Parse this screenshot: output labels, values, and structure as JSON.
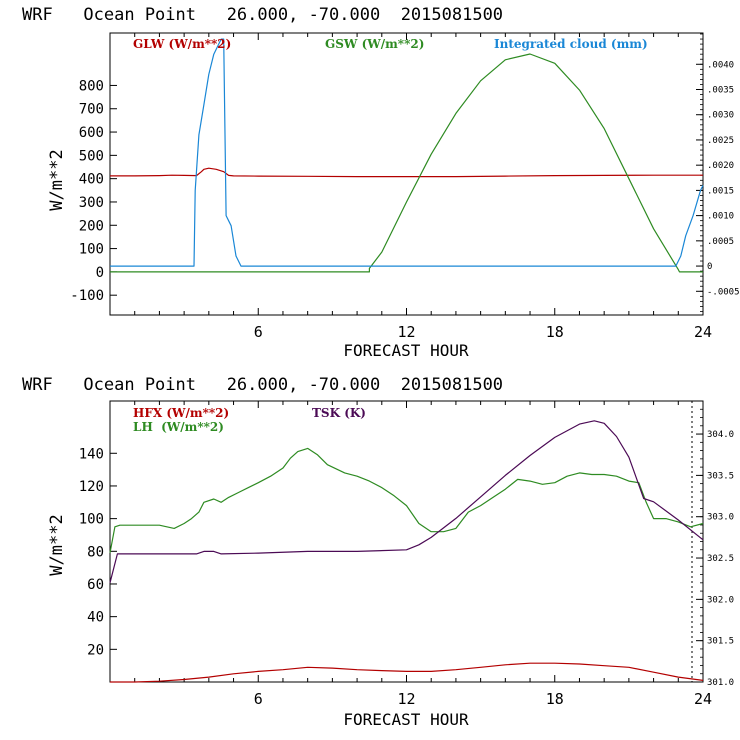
{
  "colors": {
    "glw": "#b30000",
    "gsw": "#2e8b22",
    "cloud": "#1a87d6",
    "hfx": "#b30000",
    "lh": "#2e8b22",
    "tsk": "#4b0a55",
    "axis": "#000000"
  },
  "chart_data": [
    {
      "type": "line",
      "title": "WRF   Ocean Point   26.000, -70.000  2015081500",
      "xlabel": "FORECAST HOUR",
      "ylabel": "W/m**2",
      "xlim": [
        0,
        24
      ],
      "ylim": [
        -185,
        1025
      ],
      "y2lim": [
        -0.00097,
        0.00462
      ],
      "x_ticks": [
        "6",
        "12",
        "18",
        "24"
      ],
      "y_ticks": [
        "800",
        "700",
        "600",
        "500",
        "400",
        "300",
        "200",
        "100",
        "0",
        "-100"
      ],
      "y2_ticks": [
        ".0040",
        ".0035",
        ".0030",
        ".0025",
        ".0020",
        ".0015",
        ".0010",
        ".0005",
        "0",
        "-.0005"
      ],
      "legend": [
        "GLW (W/m**2)",
        "GSW (W/m**2)",
        "Integrated cloud (mm)"
      ],
      "series": [
        {
          "name": "GLW (W/m**2)",
          "color_key": "glw",
          "axis": "left",
          "x": [
            0,
            1,
            2,
            2.5,
            3,
            3.5,
            3.7,
            3.8,
            4.0,
            4.3,
            4.6,
            4.8,
            5,
            6,
            8,
            10,
            12,
            14,
            16,
            18,
            20,
            22,
            24
          ],
          "y": [
            412,
            412,
            413,
            415,
            414,
            413,
            430,
            440,
            445,
            440,
            430,
            414,
            412,
            411,
            410,
            409,
            409,
            409,
            411,
            413,
            414,
            415,
            415
          ]
        },
        {
          "name": "GSW (W/m**2)",
          "color_key": "gsw",
          "axis": "left",
          "x": [
            0,
            10.5,
            10.5,
            11,
            12,
            13,
            14,
            15,
            16,
            17,
            18,
            19,
            20,
            21,
            22,
            23,
            23.05,
            24
          ],
          "y": [
            0,
            0,
            15,
            85,
            300,
            505,
            680,
            820,
            910,
            935,
            895,
            780,
            615,
            400,
            185,
            10,
            0,
            0
          ]
        },
        {
          "name": "Integrated cloud (mm)",
          "color_key": "cloud",
          "axis": "right",
          "x": [
            0,
            3.4,
            3.45,
            3.6,
            3.8,
            4.0,
            4.2,
            4.4,
            4.5,
            4.6,
            4.7,
            4.8,
            4.9,
            5.1,
            5.3,
            22.9,
            23.1,
            23.3,
            23.6,
            23.9,
            24
          ],
          "y": [
            0,
            0,
            0.0015,
            0.0026,
            0.0032,
            0.0038,
            0.0042,
            0.0044,
            0.0045,
            0.0045,
            0.001,
            0.0009,
            0.0008,
            0.0002,
            0,
            0,
            0.0002,
            0.0006,
            0.001,
            0.0015,
            0.0016
          ]
        }
      ]
    },
    {
      "type": "line",
      "title": "WRF   Ocean Point   26.000, -70.000  2015081500",
      "xlabel": "FORECAST HOUR",
      "ylabel": "W/m**2",
      "xlim": [
        0,
        24
      ],
      "ylim": [
        0,
        172
      ],
      "y2lim": [
        301.0,
        304.4
      ],
      "x_ticks": [
        "6",
        "12",
        "18",
        "24"
      ],
      "y_ticks": [
        "140",
        "120",
        "100",
        "80",
        "60",
        "40",
        "20"
      ],
      "y2_ticks": [
        "304.0",
        "303.5",
        "303.0",
        "302.5",
        "302.0",
        "301.5",
        "301.0"
      ],
      "legend": [
        "HFX (W/m**2)",
        "LH  (W/m**2)",
        "TSK (K)"
      ],
      "series": [
        {
          "name": "HFX (W/m**2)",
          "color_key": "hfx",
          "axis": "left",
          "x": [
            0,
            1,
            2,
            3,
            4,
            5,
            6,
            7,
            8,
            9,
            10,
            11,
            12,
            13,
            14,
            15,
            16,
            17,
            18,
            19,
            20,
            21,
            22,
            23,
            24
          ],
          "y": [
            0,
            0,
            0.5,
            1.5,
            3,
            5,
            6.5,
            7.5,
            9,
            8.5,
            7.5,
            7,
            6.5,
            6.5,
            7.5,
            9,
            10.5,
            11.5,
            11.5,
            11,
            10,
            9,
            6,
            3,
            1
          ]
        },
        {
          "name": "LH  (W/m**2)",
          "color_key": "lh",
          "axis": "left",
          "x": [
            0,
            0.2,
            0.4,
            1,
            2,
            2.6,
            3,
            3.3,
            3.6,
            3.8,
            4.2,
            4.5,
            4.8,
            5.2,
            5.6,
            6,
            6.5,
            7,
            7.3,
            7.6,
            8,
            8.4,
            8.8,
            9.5,
            10,
            10.5,
            11,
            11.5,
            12,
            12.5,
            13,
            13.5,
            14,
            14.5,
            15,
            15.5,
            16,
            16.5,
            17,
            17.5,
            18,
            18.5,
            19,
            19.5,
            20,
            20.5,
            21,
            21.4,
            21.7,
            22,
            22.5,
            23,
            23.5,
            24
          ],
          "y": [
            79,
            95,
            96,
            96,
            96,
            94,
            97,
            100,
            104,
            110,
            112,
            110,
            113,
            116,
            119,
            122,
            126,
            131,
            137,
            141,
            143,
            139,
            133,
            128,
            126,
            123,
            119,
            114,
            108,
            97,
            92,
            92,
            94,
            104,
            108,
            113,
            118,
            124,
            123,
            121,
            122,
            126,
            128,
            127,
            127,
            126,
            123,
            122,
            110,
            100,
            100,
            98,
            95,
            97
          ]
        },
        {
          "name": "TSK (K)",
          "color_key": "tsk",
          "axis": "right",
          "x": [
            0,
            0.3,
            0.5,
            3.5,
            3.8,
            4.2,
            4.5,
            6,
            8,
            10,
            12,
            12.5,
            13,
            14,
            15,
            16,
            17,
            18,
            19,
            19.6,
            20,
            20.5,
            21,
            21.6,
            22,
            23,
            24
          ],
          "y": [
            302.2,
            302.55,
            302.55,
            302.55,
            302.58,
            302.58,
            302.55,
            302.56,
            302.58,
            302.58,
            302.6,
            302.66,
            302.75,
            302.98,
            303.24,
            303.5,
            303.74,
            303.96,
            304.12,
            304.16,
            304.13,
            303.97,
            303.72,
            303.22,
            303.18,
            302.96,
            302.72
          ]
        }
      ]
    }
  ]
}
